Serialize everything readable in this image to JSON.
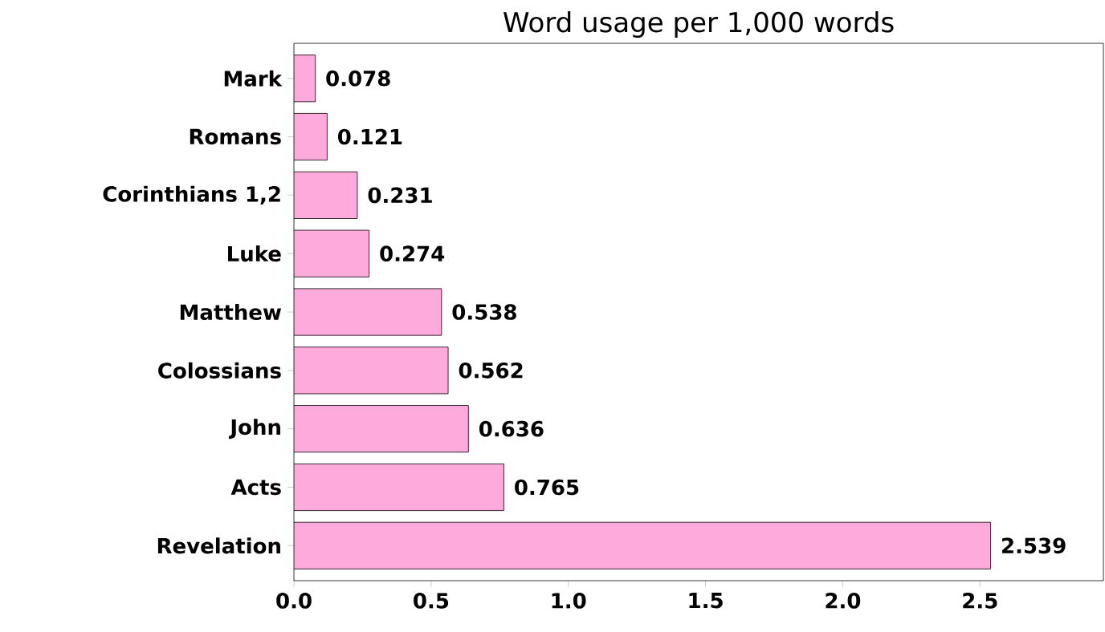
{
  "chart_data": {
    "type": "bar",
    "orientation": "horizontal",
    "title": "Word usage per 1,000 words",
    "categories": [
      "Mark",
      "Romans",
      "Corinthians 1,2",
      "Luke",
      "Matthew",
      "Colossians",
      "John",
      "Acts",
      "Revelation"
    ],
    "values": [
      0.078,
      0.121,
      0.231,
      0.274,
      0.538,
      0.562,
      0.636,
      0.765,
      2.539
    ],
    "value_labels": [
      "0.078",
      "0.121",
      "0.231",
      "0.274",
      "0.538",
      "0.562",
      "0.636",
      "0.765",
      "2.539"
    ],
    "color": "#ffaadd",
    "xlim": [
      0,
      2.95
    ],
    "xticks": [
      {
        "value": 0,
        "label": "0.0"
      },
      {
        "value": 0.5,
        "label": "0.5"
      },
      {
        "value": 1,
        "label": "1.0"
      },
      {
        "value": 1.5,
        "label": "1.5"
      },
      {
        "value": 2,
        "label": "2.0"
      },
      {
        "value": 2.5,
        "label": "2.5"
      }
    ],
    "grid": false
  }
}
